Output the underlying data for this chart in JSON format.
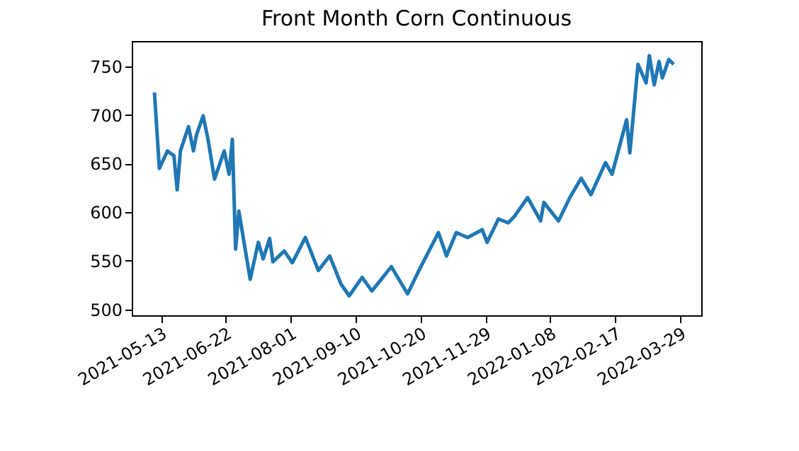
{
  "chart_data": {
    "type": "line",
    "title": "Front Month Corn Continuous",
    "x": [
      "2021-05-09",
      "2021-05-12",
      "2021-05-17",
      "2021-05-21",
      "2021-05-23",
      "2021-05-25",
      "2021-05-30",
      "2021-06-02",
      "2021-06-04",
      "2021-06-08",
      "2021-06-11",
      "2021-06-15",
      "2021-06-21",
      "2021-06-24",
      "2021-06-26",
      "2021-06-28",
      "2021-06-30",
      "2021-07-07",
      "2021-07-12",
      "2021-07-15",
      "2021-07-19",
      "2021-07-21",
      "2021-07-28",
      "2021-08-02",
      "2021-08-10",
      "2021-08-18",
      "2021-08-25",
      "2021-09-01",
      "2021-09-06",
      "2021-09-14",
      "2021-09-20",
      "2021-10-02",
      "2021-10-12",
      "2021-10-19",
      "2021-10-31",
      "2021-11-05",
      "2021-11-11",
      "2021-11-18",
      "2021-11-27",
      "2021-11-30",
      "2021-12-07",
      "2021-12-13",
      "2021-12-17",
      "2021-12-25",
      "2022-01-02",
      "2022-01-04",
      "2022-01-13",
      "2022-01-20",
      "2022-01-27",
      "2022-02-02",
      "2022-02-11",
      "2022-02-15",
      "2022-02-24",
      "2022-02-26",
      "2022-03-03",
      "2022-03-08",
      "2022-03-10",
      "2022-03-13",
      "2022-03-16",
      "2022-03-18",
      "2022-03-22",
      "2022-03-25"
    ],
    "series": [
      {
        "color": "#1f77b4",
        "values": [
          723,
          645,
          663,
          658,
          623,
          663,
          688,
          663,
          680,
          699,
          675,
          634,
          663,
          639,
          675,
          562,
          601,
          531,
          569,
          552,
          573,
          549,
          560,
          548,
          574,
          540,
          555,
          526,
          514,
          533,
          519,
          544,
          516,
          540,
          579,
          555,
          579,
          574,
          582,
          569,
          593,
          589,
          596,
          615,
          591,
          610,
          591,
          615,
          635,
          618,
          651,
          639,
          695,
          661,
          752,
          733,
          761,
          731,
          755,
          738,
          757,
          752
        ]
      }
    ],
    "xlim": [
      "2021-04-25",
      "2022-04-11"
    ],
    "xticks": [
      "2021-05-13",
      "2021-06-22",
      "2021-08-01",
      "2021-09-10",
      "2021-10-20",
      "2021-11-29",
      "2022-01-08",
      "2022-02-17",
      "2022-03-29"
    ],
    "ylim": [
      494,
      776
    ],
    "yticks": [
      500,
      550,
      600,
      650,
      700,
      750
    ],
    "grid": false,
    "marker": "none",
    "line_style": "solid"
  }
}
